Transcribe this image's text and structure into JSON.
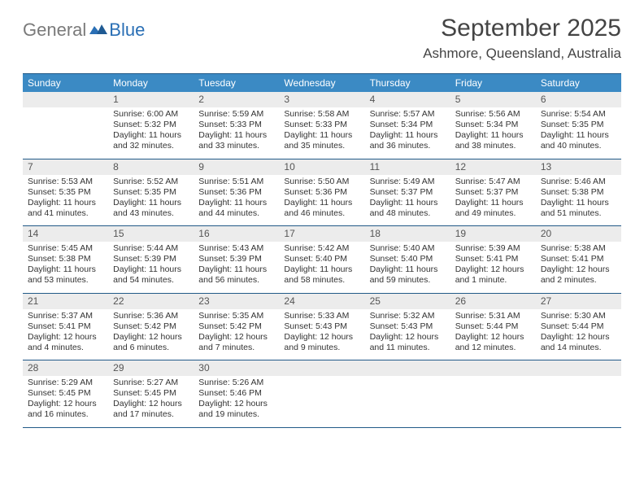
{
  "brand": {
    "general": "General",
    "blue": "Blue"
  },
  "title": "September 2025",
  "location": "Ashmore, Queensland, Australia",
  "colors": {
    "header_bg": "#3b8ac4",
    "header_border": "#225a88",
    "daynum_bg": "#ececec",
    "text": "#333333",
    "brand_grey": "#7a7a7a",
    "brand_blue": "#2a6fb5",
    "page_bg": "#ffffff"
  },
  "typography": {
    "title_fontsize": 30,
    "location_fontsize": 17,
    "header_fontsize": 12,
    "cell_fontsize": 10.5
  },
  "day_names": [
    "Sunday",
    "Monday",
    "Tuesday",
    "Wednesday",
    "Thursday",
    "Friday",
    "Saturday"
  ],
  "weeks": [
    [
      {
        "day": null
      },
      {
        "day": 1,
        "sunrise": "Sunrise: 6:00 AM",
        "sunset": "Sunset: 5:32 PM",
        "daylight1": "Daylight: 11 hours",
        "daylight2": "and 32 minutes."
      },
      {
        "day": 2,
        "sunrise": "Sunrise: 5:59 AM",
        "sunset": "Sunset: 5:33 PM",
        "daylight1": "Daylight: 11 hours",
        "daylight2": "and 33 minutes."
      },
      {
        "day": 3,
        "sunrise": "Sunrise: 5:58 AM",
        "sunset": "Sunset: 5:33 PM",
        "daylight1": "Daylight: 11 hours",
        "daylight2": "and 35 minutes."
      },
      {
        "day": 4,
        "sunrise": "Sunrise: 5:57 AM",
        "sunset": "Sunset: 5:34 PM",
        "daylight1": "Daylight: 11 hours",
        "daylight2": "and 36 minutes."
      },
      {
        "day": 5,
        "sunrise": "Sunrise: 5:56 AM",
        "sunset": "Sunset: 5:34 PM",
        "daylight1": "Daylight: 11 hours",
        "daylight2": "and 38 minutes."
      },
      {
        "day": 6,
        "sunrise": "Sunrise: 5:54 AM",
        "sunset": "Sunset: 5:35 PM",
        "daylight1": "Daylight: 11 hours",
        "daylight2": "and 40 minutes."
      }
    ],
    [
      {
        "day": 7,
        "sunrise": "Sunrise: 5:53 AM",
        "sunset": "Sunset: 5:35 PM",
        "daylight1": "Daylight: 11 hours",
        "daylight2": "and 41 minutes."
      },
      {
        "day": 8,
        "sunrise": "Sunrise: 5:52 AM",
        "sunset": "Sunset: 5:35 PM",
        "daylight1": "Daylight: 11 hours",
        "daylight2": "and 43 minutes."
      },
      {
        "day": 9,
        "sunrise": "Sunrise: 5:51 AM",
        "sunset": "Sunset: 5:36 PM",
        "daylight1": "Daylight: 11 hours",
        "daylight2": "and 44 minutes."
      },
      {
        "day": 10,
        "sunrise": "Sunrise: 5:50 AM",
        "sunset": "Sunset: 5:36 PM",
        "daylight1": "Daylight: 11 hours",
        "daylight2": "and 46 minutes."
      },
      {
        "day": 11,
        "sunrise": "Sunrise: 5:49 AM",
        "sunset": "Sunset: 5:37 PM",
        "daylight1": "Daylight: 11 hours",
        "daylight2": "and 48 minutes."
      },
      {
        "day": 12,
        "sunrise": "Sunrise: 5:47 AM",
        "sunset": "Sunset: 5:37 PM",
        "daylight1": "Daylight: 11 hours",
        "daylight2": "and 49 minutes."
      },
      {
        "day": 13,
        "sunrise": "Sunrise: 5:46 AM",
        "sunset": "Sunset: 5:38 PM",
        "daylight1": "Daylight: 11 hours",
        "daylight2": "and 51 minutes."
      }
    ],
    [
      {
        "day": 14,
        "sunrise": "Sunrise: 5:45 AM",
        "sunset": "Sunset: 5:38 PM",
        "daylight1": "Daylight: 11 hours",
        "daylight2": "and 53 minutes."
      },
      {
        "day": 15,
        "sunrise": "Sunrise: 5:44 AM",
        "sunset": "Sunset: 5:39 PM",
        "daylight1": "Daylight: 11 hours",
        "daylight2": "and 54 minutes."
      },
      {
        "day": 16,
        "sunrise": "Sunrise: 5:43 AM",
        "sunset": "Sunset: 5:39 PM",
        "daylight1": "Daylight: 11 hours",
        "daylight2": "and 56 minutes."
      },
      {
        "day": 17,
        "sunrise": "Sunrise: 5:42 AM",
        "sunset": "Sunset: 5:40 PM",
        "daylight1": "Daylight: 11 hours",
        "daylight2": "and 58 minutes."
      },
      {
        "day": 18,
        "sunrise": "Sunrise: 5:40 AM",
        "sunset": "Sunset: 5:40 PM",
        "daylight1": "Daylight: 11 hours",
        "daylight2": "and 59 minutes."
      },
      {
        "day": 19,
        "sunrise": "Sunrise: 5:39 AM",
        "sunset": "Sunset: 5:41 PM",
        "daylight1": "Daylight: 12 hours",
        "daylight2": "and 1 minute."
      },
      {
        "day": 20,
        "sunrise": "Sunrise: 5:38 AM",
        "sunset": "Sunset: 5:41 PM",
        "daylight1": "Daylight: 12 hours",
        "daylight2": "and 2 minutes."
      }
    ],
    [
      {
        "day": 21,
        "sunrise": "Sunrise: 5:37 AM",
        "sunset": "Sunset: 5:41 PM",
        "daylight1": "Daylight: 12 hours",
        "daylight2": "and 4 minutes."
      },
      {
        "day": 22,
        "sunrise": "Sunrise: 5:36 AM",
        "sunset": "Sunset: 5:42 PM",
        "daylight1": "Daylight: 12 hours",
        "daylight2": "and 6 minutes."
      },
      {
        "day": 23,
        "sunrise": "Sunrise: 5:35 AM",
        "sunset": "Sunset: 5:42 PM",
        "daylight1": "Daylight: 12 hours",
        "daylight2": "and 7 minutes."
      },
      {
        "day": 24,
        "sunrise": "Sunrise: 5:33 AM",
        "sunset": "Sunset: 5:43 PM",
        "daylight1": "Daylight: 12 hours",
        "daylight2": "and 9 minutes."
      },
      {
        "day": 25,
        "sunrise": "Sunrise: 5:32 AM",
        "sunset": "Sunset: 5:43 PM",
        "daylight1": "Daylight: 12 hours",
        "daylight2": "and 11 minutes."
      },
      {
        "day": 26,
        "sunrise": "Sunrise: 5:31 AM",
        "sunset": "Sunset: 5:44 PM",
        "daylight1": "Daylight: 12 hours",
        "daylight2": "and 12 minutes."
      },
      {
        "day": 27,
        "sunrise": "Sunrise: 5:30 AM",
        "sunset": "Sunset: 5:44 PM",
        "daylight1": "Daylight: 12 hours",
        "daylight2": "and 14 minutes."
      }
    ],
    [
      {
        "day": 28,
        "sunrise": "Sunrise: 5:29 AM",
        "sunset": "Sunset: 5:45 PM",
        "daylight1": "Daylight: 12 hours",
        "daylight2": "and 16 minutes."
      },
      {
        "day": 29,
        "sunrise": "Sunrise: 5:27 AM",
        "sunset": "Sunset: 5:45 PM",
        "daylight1": "Daylight: 12 hours",
        "daylight2": "and 17 minutes."
      },
      {
        "day": 30,
        "sunrise": "Sunrise: 5:26 AM",
        "sunset": "Sunset: 5:46 PM",
        "daylight1": "Daylight: 12 hours",
        "daylight2": "and 19 minutes."
      },
      {
        "day": null
      },
      {
        "day": null
      },
      {
        "day": null
      },
      {
        "day": null
      }
    ]
  ]
}
